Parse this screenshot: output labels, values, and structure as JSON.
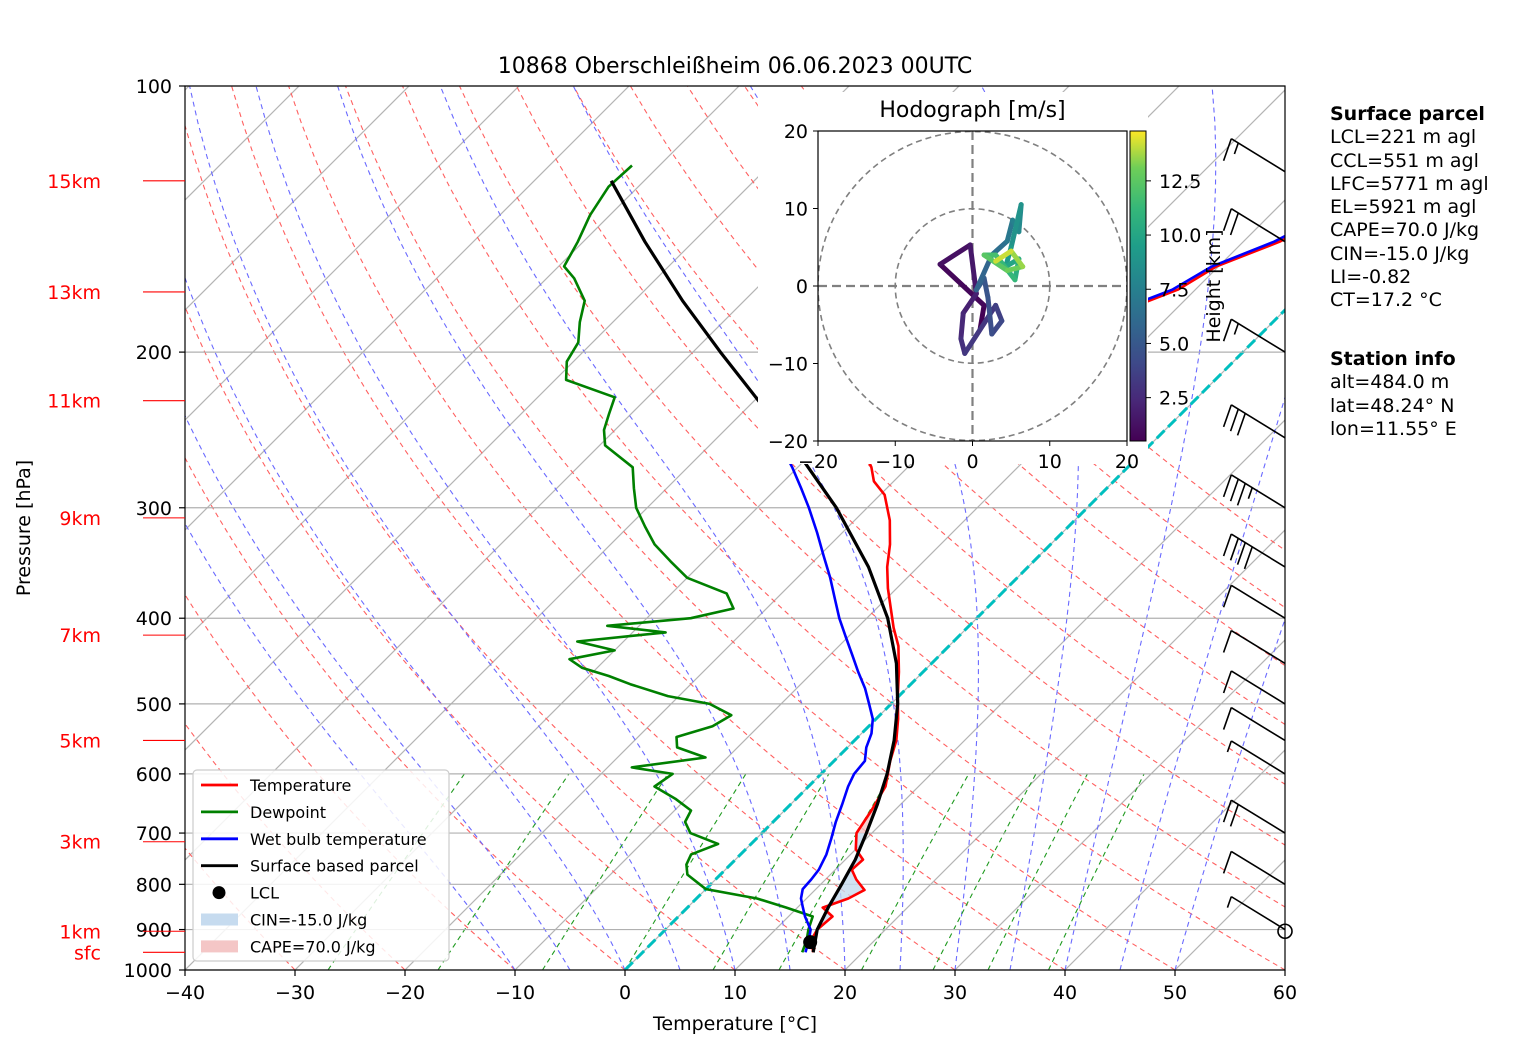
{
  "chart_data": [
    {
      "type": "line",
      "kind": "skew-T log-p sounding",
      "title": "10868 Oberschleißheim 06.06.2023 00UTC",
      "xlabel": "Temperature [°C]",
      "ylabel": "Pressure [hPa]",
      "xlim": [
        -40,
        60
      ],
      "ylim": [
        1000,
        100
      ],
      "y_scale": "log",
      "x_ticks": [
        "−40",
        "−30",
        "−20",
        "−10",
        "0",
        "10",
        "20",
        "30",
        "40",
        "50",
        "60"
      ],
      "y_ticks": [
        "100",
        "200",
        "300",
        "400",
        "500",
        "600",
        "700",
        "800",
        "900",
        "1000"
      ],
      "height_labels": [
        {
          "label": "15km",
          "p": 128
        },
        {
          "label": "13km",
          "p": 171
        },
        {
          "label": "11km",
          "p": 227
        },
        {
          "label": "9km",
          "p": 308
        },
        {
          "label": "7km",
          "p": 418
        },
        {
          "label": "5km",
          "p": 550
        },
        {
          "label": "3km",
          "p": 716
        },
        {
          "label": "1km",
          "p": 904
        },
        {
          "label": "sfc",
          "p": 955
        }
      ],
      "background_lines": {
        "isotherms_c": [
          -120,
          -110,
          -100,
          -90,
          -80,
          -70,
          -60,
          -50,
          -40,
          -30,
          -20,
          -10,
          0,
          10,
          20,
          30,
          40,
          50,
          60
        ],
        "dry_adiabats_c": [
          -30,
          -20,
          -10,
          0,
          10,
          20,
          30,
          40,
          50,
          60,
          70,
          80,
          90,
          100,
          110,
          120,
          130
        ],
        "moist_adiabats_c": [
          -10,
          -5,
          0,
          5,
          10,
          15,
          20,
          25,
          30,
          35,
          40,
          45,
          50
        ],
        "mixing_ratio_start_c": [
          -27,
          -17,
          -7.5,
          0,
          8,
          14,
          21.5,
          28,
          33,
          38.5
        ],
        "freezing_line": true
      },
      "series": [
        {
          "name": "Temperature",
          "color": "#ff0000",
          "points": [
            [
              955,
              15.5
            ],
            [
              925,
              14.2
            ],
            [
              900,
              13.8
            ],
            [
              870,
              14.0
            ],
            [
              850,
              12.3
            ],
            [
              830,
              13.8
            ],
            [
              812,
              14.5
            ],
            [
              790,
              12.8
            ],
            [
              770,
              11.5
            ],
            [
              750,
              11.6
            ],
            [
              730,
              10.0
            ],
            [
              700,
              8.6
            ],
            [
              660,
              7.9
            ],
            [
              620,
              7.0
            ],
            [
              580,
              5.1
            ],
            [
              550,
              3.8
            ],
            [
              520,
              2.0
            ],
            [
              490,
              -0.1
            ],
            [
              460,
              -2.2
            ],
            [
              430,
              -4.6
            ],
            [
              410,
              -6.7
            ],
            [
              390,
              -8.7
            ],
            [
              370,
              -10.8
            ],
            [
              350,
              -12.8
            ],
            [
              330,
              -14.6
            ],
            [
              310,
              -16.8
            ],
            [
              290,
              -19.6
            ],
            [
              280,
              -21.8
            ],
            [
              270,
              -23.3
            ],
            [
              260,
              -25.2
            ],
            [
              250,
              -27.2
            ],
            [
              240,
              -28.0
            ],
            [
              230,
              -29.3
            ],
            [
              220,
              -27.0
            ],
            [
              210,
              -23.0
            ],
            [
              200,
              -20.5
            ],
            [
              190,
              -17.6
            ],
            [
              180,
              -14.8
            ],
            [
              170,
              -11.6
            ],
            [
              160,
              -10.2
            ],
            [
              150,
              -6.7
            ],
            [
              140,
              -4.4
            ],
            [
              130,
              -2.8
            ],
            [
              123,
              -1.5
            ]
          ]
        },
        {
          "name": "Dewpoint",
          "color": "#008000",
          "points": [
            [
              955,
              14.5
            ],
            [
              925,
              13.8
            ],
            [
              900,
              13.0
            ],
            [
              870,
              12.2
            ],
            [
              850,
              9.0
            ],
            [
              830,
              5.5
            ],
            [
              810,
              0.0
            ],
            [
              800,
              -1.0
            ],
            [
              780,
              -3.0
            ],
            [
              760,
              -4.0
            ],
            [
              740,
              -4.5
            ],
            [
              720,
              -3.0
            ],
            [
              700,
              -6.5
            ],
            [
              680,
              -8.0
            ],
            [
              660,
              -8.5
            ],
            [
              640,
              -11.0
            ],
            [
              620,
              -14.0
            ],
            [
              600,
              -13.5
            ],
            [
              590,
              -17.8
            ],
            [
              575,
              -12.0
            ],
            [
              560,
              -15.5
            ],
            [
              545,
              -16.5
            ],
            [
              530,
              -14.2
            ],
            [
              515,
              -13.5
            ],
            [
              500,
              -16.5
            ],
            [
              490,
              -21.0
            ],
            [
              475,
              -25.5
            ],
            [
              465,
              -28.2
            ],
            [
              455,
              -31.4
            ],
            [
              445,
              -33.3
            ],
            [
              435,
              -30.0
            ],
            [
              425,
              -34.2
            ],
            [
              415,
              -27.0
            ],
            [
              408,
              -32.9
            ],
            [
              400,
              -26.0
            ],
            [
              390,
              -23.0
            ],
            [
              375,
              -25.0
            ],
            [
              360,
              -30.0
            ],
            [
              345,
              -33.0
            ],
            [
              330,
              -36.0
            ],
            [
              315,
              -38.5
            ],
            [
              300,
              -41.0
            ],
            [
              285,
              -43.0
            ],
            [
              270,
              -45.0
            ],
            [
              255,
              -49.5
            ],
            [
              245,
              -51.0
            ],
            [
              235,
              -52.0
            ],
            [
              225,
              -53.0
            ],
            [
              215,
              -59.0
            ],
            [
              205,
              -60.6
            ],
            [
              195,
              -61.3
            ],
            [
              185,
              -63.0
            ],
            [
              175,
              -64.5
            ],
            [
              165,
              -67.5
            ],
            [
              160,
              -69.5
            ],
            [
              150,
              -70.5
            ],
            [
              140,
              -71.8
            ],
            [
              130,
              -72.7
            ],
            [
              123,
              -72.5
            ]
          ]
        },
        {
          "name": "Wet bulb temperature",
          "color": "#0000ff",
          "points": [
            [
              955,
              14.8
            ],
            [
              925,
              14.0
            ],
            [
              900,
              13.2
            ],
            [
              870,
              11.5
            ],
            [
              850,
              10.5
            ],
            [
              830,
              9.5
            ],
            [
              810,
              8.8
            ],
            [
              790,
              8.7
            ],
            [
              770,
              8.5
            ],
            [
              740,
              7.8
            ],
            [
              710,
              6.8
            ],
            [
              680,
              5.7
            ],
            [
              650,
              4.7
            ],
            [
              620,
              3.6
            ],
            [
              600,
              3.0
            ],
            [
              580,
              2.8
            ],
            [
              560,
              1.7
            ],
            [
              540,
              0.9
            ],
            [
              520,
              -0.3
            ],
            [
              500,
              -2.0
            ],
            [
              480,
              -3.8
            ],
            [
              460,
              -5.9
            ],
            [
              440,
              -8.0
            ],
            [
              420,
              -10.2
            ],
            [
              400,
              -12.5
            ],
            [
              380,
              -14.7
            ],
            [
              360,
              -17.0
            ],
            [
              340,
              -19.6
            ],
            [
              320,
              -22.3
            ],
            [
              300,
              -25.3
            ],
            [
              285,
              -27.8
            ],
            [
              270,
              -30.5
            ],
            [
              260,
              -32.5
            ],
            [
              250,
              -34.0
            ],
            [
              240,
              -35.0
            ],
            [
              230,
              -33.0
            ],
            [
              220,
              -27.0
            ],
            [
              210,
              -24.0
            ],
            [
              200,
              -21.0
            ],
            [
              190,
              -18.0
            ],
            [
              180,
              -15.3
            ],
            [
              170,
              -12.1
            ],
            [
              160,
              -10.6
            ],
            [
              150,
              -7.2
            ],
            [
              140,
              -4.9
            ],
            [
              130,
              -3.3
            ],
            [
              123,
              -2.0
            ]
          ]
        },
        {
          "name": "Surface based parcel",
          "color": "#000000",
          "points": [
            [
              955,
              15.5
            ],
            [
              900,
              13.8
            ],
            [
              850,
              12.8
            ],
            [
              800,
              11.9
            ],
            [
              750,
              10.9
            ],
            [
              700,
              9.5
            ],
            [
              650,
              7.9
            ],
            [
              600,
              6.0
            ],
            [
              550,
              3.6
            ],
            [
              500,
              0.6
            ],
            [
              450,
              -3.2
            ],
            [
              400,
              -8.1
            ],
            [
              350,
              -14.5
            ],
            [
              300,
              -22.8
            ],
            [
              250,
              -33.6
            ],
            [
              200,
              -47.5
            ],
            [
              175,
              -55.6
            ],
            [
              150,
              -64.4
            ],
            [
              128,
              -73.0
            ]
          ]
        }
      ],
      "lcl": {
        "name": "LCL",
        "p": 930,
        "t": 14.3
      },
      "wind_barbs": [
        {
          "p": 904,
          "speed_kt": 0
        },
        {
          "p": 900,
          "speed_kt": 5
        },
        {
          "p": 800,
          "speed_kt": 10
        },
        {
          "p": 700,
          "speed_kt": 20
        },
        {
          "p": 600,
          "speed_kt": 5
        },
        {
          "p": 550,
          "speed_kt": 10
        },
        {
          "p": 500,
          "speed_kt": 10
        },
        {
          "p": 450,
          "speed_kt": 10
        },
        {
          "p": 400,
          "speed_kt": 10
        },
        {
          "p": 350,
          "speed_kt": 40
        },
        {
          "p": 300,
          "speed_kt": 35
        },
        {
          "p": 250,
          "speed_kt": 30
        },
        {
          "p": 200,
          "speed_kt": 15
        },
        {
          "p": 150,
          "speed_kt": 20
        },
        {
          "p": 125,
          "speed_kt": 15
        }
      ],
      "legend": {
        "position": "lower-left",
        "entries": [
          {
            "label": "Temperature",
            "color": "#ff0000",
            "style": "line"
          },
          {
            "label": "Dewpoint",
            "color": "#008000",
            "style": "line"
          },
          {
            "label": "Wet bulb temperature",
            "color": "#0000ff",
            "style": "line"
          },
          {
            "label": "Surface based parcel",
            "color": "#000000",
            "style": "line"
          },
          {
            "label": "LCL",
            "color": "#000000",
            "style": "marker"
          },
          {
            "label": "CIN=-15.0 J/kg",
            "color": "#c6dbef",
            "style": "patch"
          },
          {
            "label": "CAPE=70.0 J/kg",
            "color": "#f4c6c6",
            "style": "patch"
          }
        ]
      }
    },
    {
      "type": "line",
      "kind": "hodograph",
      "title": "Hodograph [m/s]",
      "xlim": [
        -20,
        20
      ],
      "ylim": [
        -20,
        20
      ],
      "x_ticks": [
        "−20",
        "−10",
        "0",
        "10",
        "20"
      ],
      "y_ticks": [
        "−20",
        "−10",
        "0",
        "10",
        "20"
      ],
      "rings_ms": [
        10,
        20
      ],
      "colorbar": {
        "label": "Height [km]",
        "ticks": [
          "2.5",
          "5.0",
          "7.5",
          "10.0",
          "12.5"
        ],
        "range_km": [
          0.5,
          14.8
        ],
        "colormap": "viridis"
      },
      "points_uvh": [
        [
          1.0,
          -5.5,
          0.5
        ],
        [
          1.5,
          -2.5,
          0.8
        ],
        [
          -4.2,
          2.8,
          1.2
        ],
        [
          -0.3,
          5.3,
          1.6
        ],
        [
          0.5,
          -1.0,
          2.0
        ],
        [
          -1.2,
          -3.5,
          2.4
        ],
        [
          -1.5,
          -6.8,
          2.8
        ],
        [
          -1.0,
          -8.7,
          3.2
        ],
        [
          3.0,
          -2.5,
          3.6
        ],
        [
          3.8,
          -4.5,
          4.0
        ],
        [
          2.5,
          -6.2,
          4.4
        ],
        [
          2.0,
          -1.5,
          4.8
        ],
        [
          1.5,
          1.0,
          5.2
        ],
        [
          0.5,
          -0.5,
          5.8
        ],
        [
          2.5,
          4.0,
          6.4
        ],
        [
          4.5,
          5.8,
          7.0
        ],
        [
          5.2,
          8.5,
          7.6
        ],
        [
          6.0,
          7.0,
          8.2
        ],
        [
          6.3,
          10.5,
          8.8
        ],
        [
          5.0,
          5.0,
          9.4
        ],
        [
          4.3,
          2.5,
          10.0
        ],
        [
          6.0,
          3.5,
          10.6
        ],
        [
          5.5,
          0.8,
          11.2
        ],
        [
          3.0,
          4.0,
          11.8
        ],
        [
          1.5,
          4.0,
          12.4
        ],
        [
          4.5,
          2.0,
          13.0
        ],
        [
          6.5,
          2.5,
          13.6
        ],
        [
          5.0,
          4.5,
          14.2
        ],
        [
          3.0,
          3.2,
          14.8
        ]
      ]
    }
  ],
  "surface_parcel": {
    "heading": "Surface parcel",
    "lines": [
      "LCL=221 m agl",
      "CCL=551 m agl",
      "LFC=5771 m agl",
      "EL=5921 m agl",
      "CAPE=70.0 J/kg",
      "CIN=-15.0 J/kg",
      "LI=-0.82",
      "CT=17.2 °C"
    ]
  },
  "station_info": {
    "heading": "Station info",
    "lines": [
      "alt=484.0 m",
      "lat=48.24° N",
      "lon=11.55° E"
    ]
  }
}
